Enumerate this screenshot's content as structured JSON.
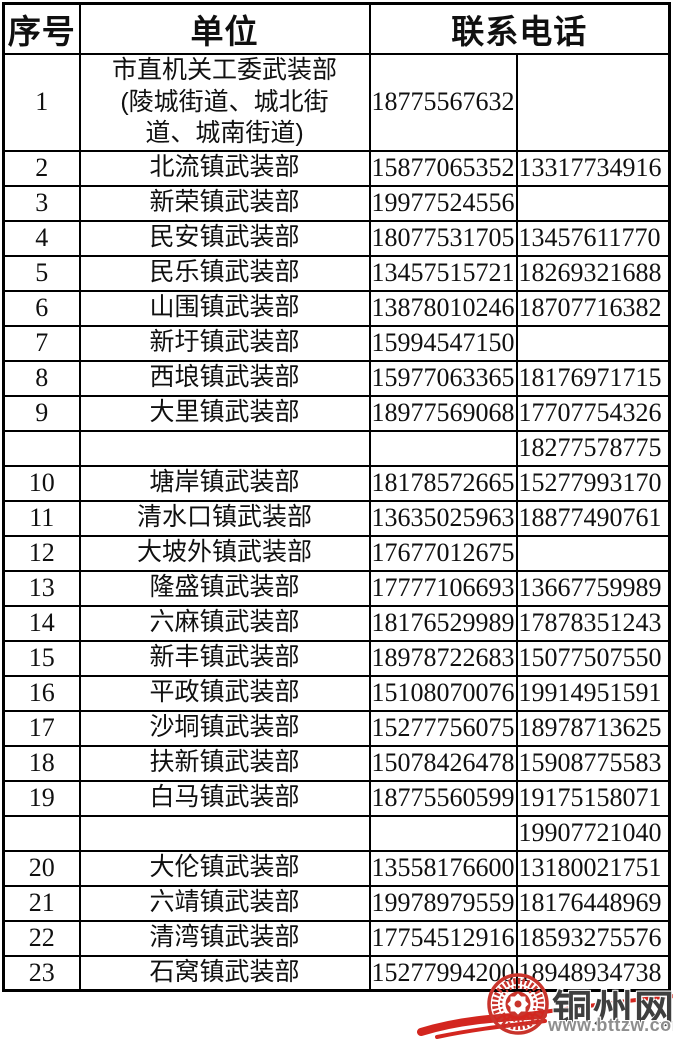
{
  "table": {
    "header": {
      "no": "序号",
      "unit": "单位",
      "phone": "联系电话"
    },
    "rows": [
      {
        "no": "1",
        "unit": "市直机关工委武装部\n(陵城街道、城北街\n道、城南街道)",
        "phone1": "18775567632",
        "phone2": ""
      },
      {
        "no": "2",
        "unit": "北流镇武装部",
        "phone1": "15877065352",
        "phone2": "13317734916"
      },
      {
        "no": "3",
        "unit": "新荣镇武装部",
        "phone1": "19977524556",
        "phone2": ""
      },
      {
        "no": "4",
        "unit": "民安镇武装部",
        "phone1": "18077531705",
        "phone2": "13457611770"
      },
      {
        "no": "5",
        "unit": "民乐镇武装部",
        "phone1": "13457515721",
        "phone2": "18269321688"
      },
      {
        "no": "6",
        "unit": "山围镇武装部",
        "phone1": "13878010246",
        "phone2": "18707716382"
      },
      {
        "no": "7",
        "unit": "新圩镇武装部",
        "phone1": "15994547150",
        "phone2": ""
      },
      {
        "no": "8",
        "unit": "西埌镇武装部",
        "phone1": "15977063365",
        "phone2": "18176971715"
      },
      {
        "no": "9",
        "unit": "大里镇武装部",
        "phone1": "18977569068",
        "phone2": "17707754326"
      },
      {
        "no": "",
        "unit": "",
        "phone1": "",
        "phone2": "18277578775"
      },
      {
        "no": "10",
        "unit": "塘岸镇武装部",
        "phone1": "18178572665",
        "phone2": "15277993170"
      },
      {
        "no": "11",
        "unit": "清水口镇武装部",
        "phone1": "13635025963",
        "phone2": "18877490761"
      },
      {
        "no": "12",
        "unit": "大坡外镇武装部",
        "phone1": "17677012675",
        "phone2": ""
      },
      {
        "no": "13",
        "unit": "隆盛镇武装部",
        "phone1": "17777106693",
        "phone2": "13667759989"
      },
      {
        "no": "14",
        "unit": "六麻镇武装部",
        "phone1": "18176529989",
        "phone2": "17878351243"
      },
      {
        "no": "15",
        "unit": "新丰镇武装部",
        "phone1": "18978722683",
        "phone2": "15077507550"
      },
      {
        "no": "16",
        "unit": "平政镇武装部",
        "phone1": "15108070076",
        "phone2": "19914951591"
      },
      {
        "no": "17",
        "unit": "沙垌镇武装部",
        "phone1": "15277756075",
        "phone2": "18978713625"
      },
      {
        "no": "18",
        "unit": "扶新镇武装部",
        "phone1": "15078426478",
        "phone2": "15908775583"
      },
      {
        "no": "19",
        "unit": "白马镇武装部",
        "phone1": "18775560599",
        "phone2": "19175158071"
      },
      {
        "no": "",
        "unit": "",
        "phone1": "",
        "phone2": "19907721040"
      },
      {
        "no": "20",
        "unit": "大伦镇武装部",
        "phone1": "13558176600",
        "phone2": "13180021751"
      },
      {
        "no": "21",
        "unit": "六靖镇武装部",
        "phone1": "19978979559",
        "phone2": "18176448969"
      },
      {
        "no": "22",
        "unit": "清湾镇武装部",
        "phone1": "17754512916",
        "phone2": "18593275576"
      },
      {
        "no": "23",
        "unit": "石窝镇武装部",
        "phone1": "15277994200",
        "phone2": "18948934738"
      }
    ]
  },
  "watermark": {
    "site_name": "铜州网",
    "site_url": "www.bttzw.com",
    "seal_icon": "bronze-drum-seal",
    "seal_color": "#c9342c",
    "accent_color": "#d3261f",
    "name_color": "#3f3f3f",
    "url_color": "#8e8e8e"
  },
  "colors": {
    "border": "#000000",
    "text": "#101010",
    "background": "#ffffff"
  }
}
